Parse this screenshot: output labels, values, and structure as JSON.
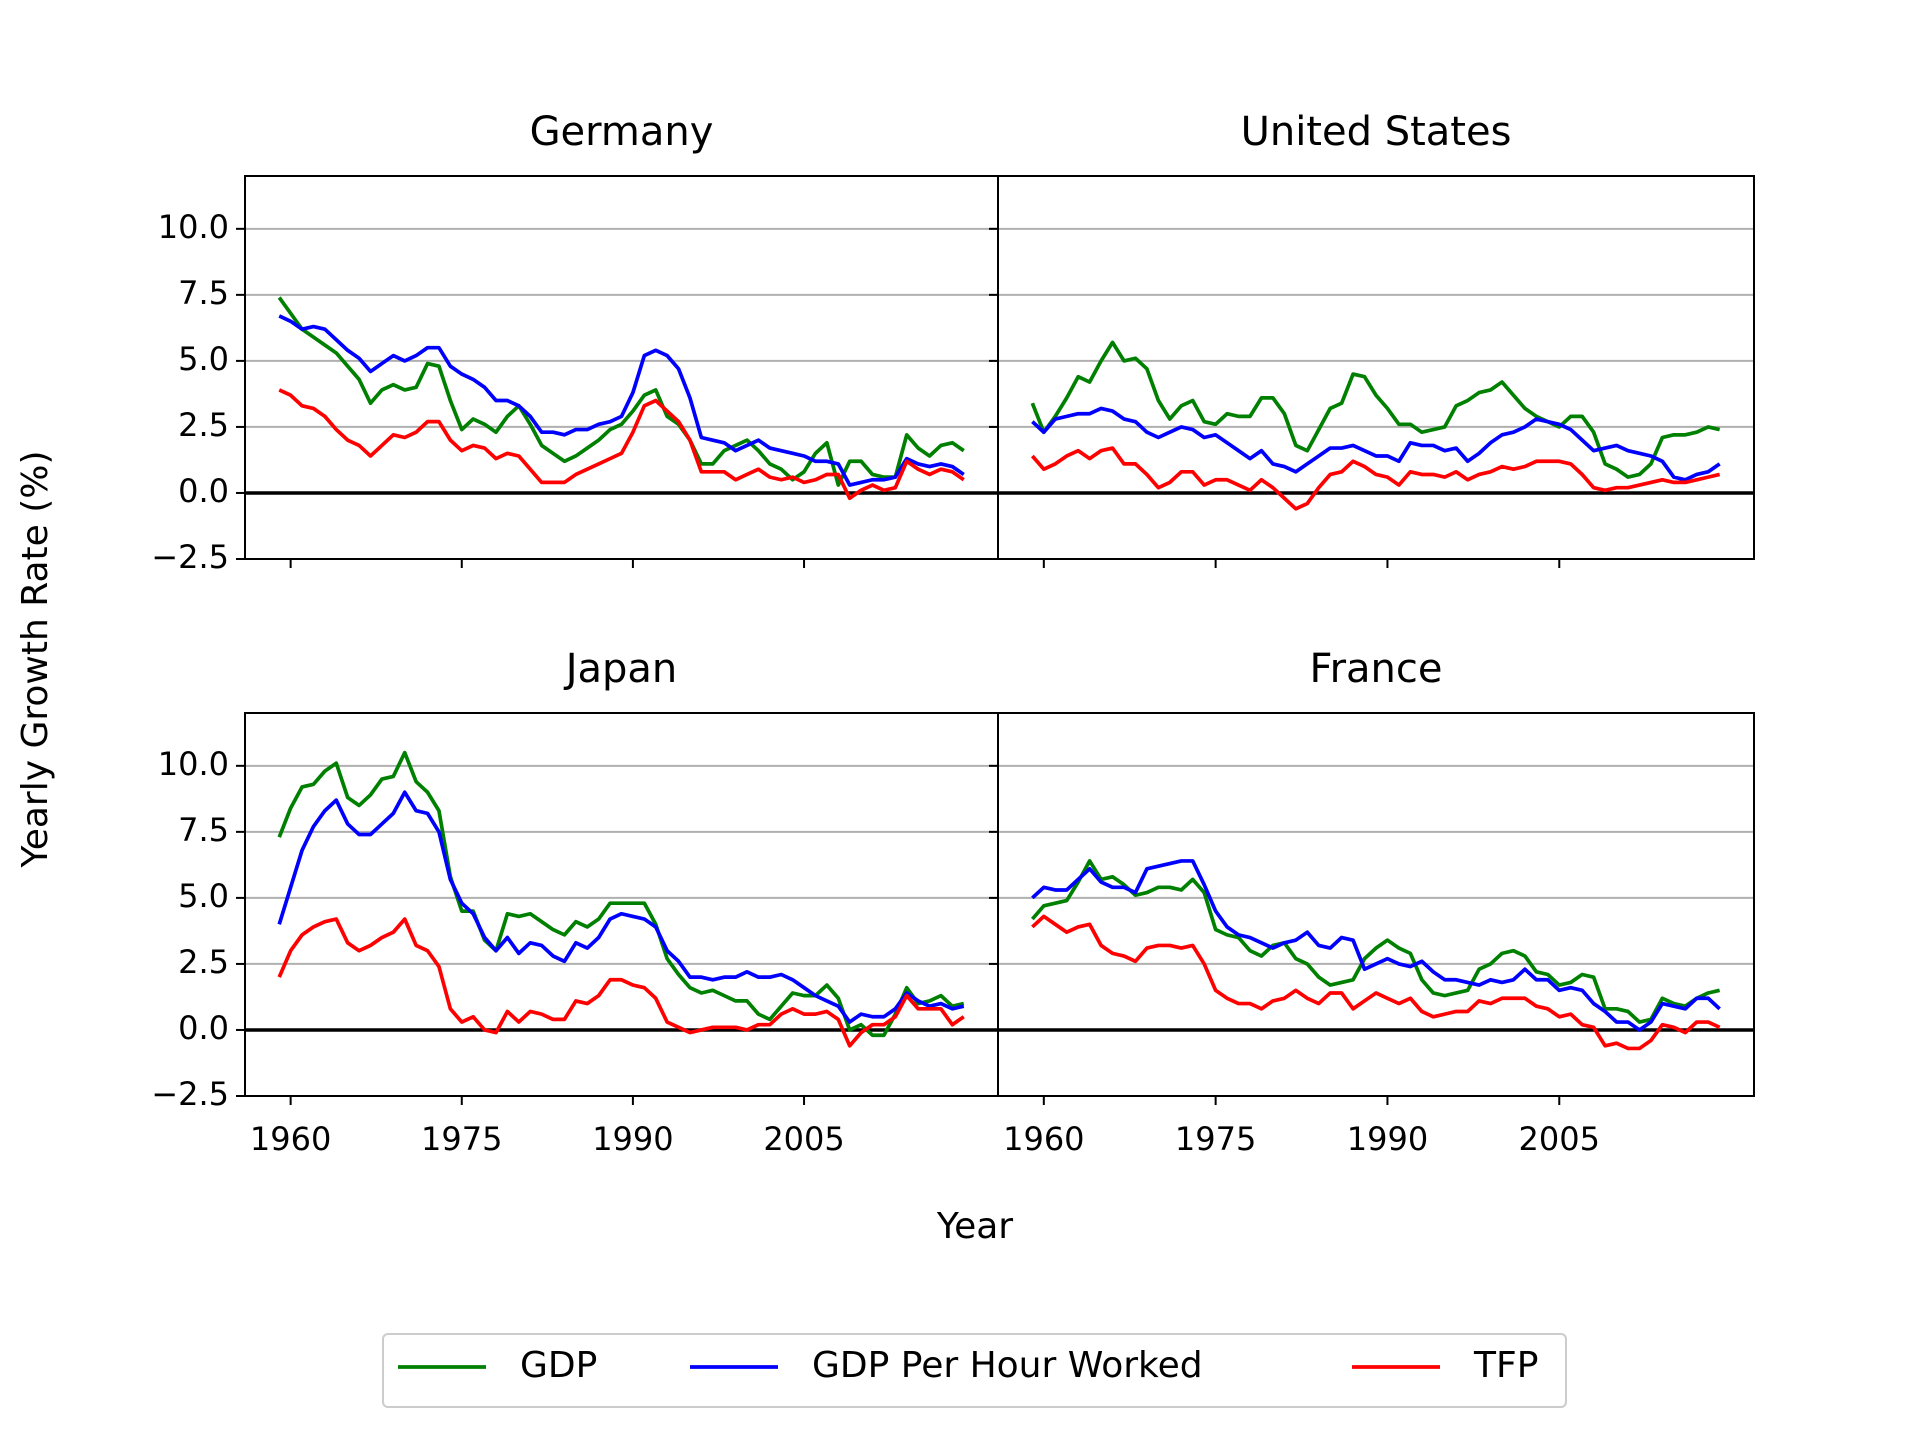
{
  "chart_data": {
    "type": "line",
    "xlabel": "Year",
    "ylabel": "Yearly Growth Rate (%)",
    "x": [
      1959,
      1960,
      1961,
      1962,
      1963,
      1964,
      1965,
      1966,
      1967,
      1968,
      1969,
      1970,
      1971,
      1972,
      1973,
      1974,
      1975,
      1976,
      1977,
      1978,
      1979,
      1980,
      1981,
      1982,
      1983,
      1984,
      1985,
      1986,
      1987,
      1988,
      1989,
      1990,
      1991,
      1992,
      1993,
      1994,
      1995,
      1996,
      1997,
      1998,
      1999,
      2000,
      2001,
      2002,
      2003,
      2004,
      2005,
      2006,
      2007,
      2008,
      2009,
      2010,
      2011,
      2012,
      2013,
      2014,
      2015,
      2016,
      2017,
      2018,
      2019
    ],
    "xlim": [
      1956,
      2022
    ],
    "xticks": [
      1960,
      1975,
      1990,
      2005
    ],
    "ylim": [
      -2.5,
      12
    ],
    "yticks": [
      {
        "value": -2.5,
        "label": "−2.5"
      },
      {
        "value": 0,
        "label": "0.0"
      },
      {
        "value": 2.5,
        "label": "2.5"
      },
      {
        "value": 5,
        "label": "5.0"
      },
      {
        "value": 7.5,
        "label": "7.5"
      },
      {
        "value": 10,
        "label": "10.0"
      }
    ],
    "grid": "y",
    "hline": 0,
    "hline_color": "#000000",
    "legend": "lower center",
    "series": [
      {
        "name": "GDP",
        "color": "#008000"
      },
      {
        "name": "GDP Per Hour Worked",
        "color": "#0000ff"
      },
      {
        "name": "TFP",
        "color": "#ff0000"
      }
    ],
    "panels": [
      {
        "title": "Germany",
        "values": [
          [
            7.4,
            6.8,
            6.2,
            5.9,
            5.6,
            5.3,
            4.8,
            4.3,
            3.4,
            3.9,
            4.1,
            3.9,
            4.0,
            4.9,
            4.8,
            3.5,
            2.4,
            2.8,
            2.6,
            2.3,
            2.9,
            3.3,
            2.6,
            1.8,
            1.5,
            1.2,
            1.4,
            1.7,
            2.0,
            2.4,
            2.6,
            3.1,
            3.7,
            3.9,
            2.9,
            2.6,
            2.0,
            1.1,
            1.1,
            1.6,
            1.8,
            2.0,
            1.6,
            1.1,
            0.9,
            0.5,
            0.8,
            1.5,
            1.9,
            0.3,
            1.2,
            1.2,
            0.7,
            0.6,
            0.6,
            2.2,
            1.7,
            1.4,
            1.8,
            1.9,
            1.6
          ],
          [
            6.7,
            6.5,
            6.2,
            6.3,
            6.2,
            5.8,
            5.4,
            5.1,
            4.6,
            4.9,
            5.2,
            5.0,
            5.2,
            5.5,
            5.5,
            4.8,
            4.5,
            4.3,
            4.0,
            3.5,
            3.5,
            3.3,
            2.9,
            2.3,
            2.3,
            2.2,
            2.4,
            2.4,
            2.6,
            2.7,
            2.9,
            3.8,
            5.2,
            5.4,
            5.2,
            4.7,
            3.6,
            2.1,
            2.0,
            1.9,
            1.6,
            1.8,
            2.0,
            1.7,
            1.6,
            1.5,
            1.4,
            1.2,
            1.2,
            1.1,
            0.3,
            0.4,
            0.5,
            0.5,
            0.6,
            1.3,
            1.1,
            1.0,
            1.1,
            1.0,
            0.7
          ],
          [
            3.9,
            3.7,
            3.3,
            3.2,
            2.9,
            2.4,
            2.0,
            1.8,
            1.4,
            1.8,
            2.2,
            2.1,
            2.3,
            2.7,
            2.7,
            2.0,
            1.6,
            1.8,
            1.7,
            1.3,
            1.5,
            1.4,
            0.9,
            0.4,
            0.4,
            0.4,
            0.7,
            0.9,
            1.1,
            1.3,
            1.5,
            2.3,
            3.3,
            3.5,
            3.1,
            2.7,
            2.0,
            0.8,
            0.8,
            0.8,
            0.5,
            0.7,
            0.9,
            0.6,
            0.5,
            0.6,
            0.4,
            0.5,
            0.7,
            0.7,
            -0.2,
            0.1,
            0.3,
            0.1,
            0.2,
            1.2,
            0.9,
            0.7,
            0.9,
            0.8,
            0.5
          ]
        ]
      },
      {
        "title": "United States",
        "values": [
          [
            3.4,
            2.3,
            2.9,
            3.6,
            4.4,
            4.2,
            5.0,
            5.7,
            5.0,
            5.1,
            4.7,
            3.5,
            2.8,
            3.3,
            3.5,
            2.7,
            2.6,
            3.0,
            2.9,
            2.9,
            3.6,
            3.6,
            3.0,
            1.8,
            1.6,
            2.4,
            3.2,
            3.4,
            4.5,
            4.4,
            3.7,
            3.2,
            2.6,
            2.6,
            2.3,
            2.4,
            2.5,
            3.3,
            3.5,
            3.8,
            3.9,
            4.2,
            3.7,
            3.2,
            2.9,
            2.7,
            2.5,
            2.9,
            2.9,
            2.3,
            1.1,
            0.9,
            0.6,
            0.7,
            1.1,
            2.1,
            2.2,
            2.2,
            2.3,
            2.5,
            2.4
          ],
          [
            2.7,
            2.3,
            2.8,
            2.9,
            3.0,
            3.0,
            3.2,
            3.1,
            2.8,
            2.7,
            2.3,
            2.1,
            2.3,
            2.5,
            2.4,
            2.1,
            2.2,
            1.9,
            1.6,
            1.3,
            1.6,
            1.1,
            1.0,
            0.8,
            1.1,
            1.4,
            1.7,
            1.7,
            1.8,
            1.6,
            1.4,
            1.4,
            1.2,
            1.9,
            1.8,
            1.8,
            1.6,
            1.7,
            1.2,
            1.5,
            1.9,
            2.2,
            2.3,
            2.5,
            2.8,
            2.7,
            2.6,
            2.4,
            2.0,
            1.6,
            1.7,
            1.8,
            1.6,
            1.5,
            1.4,
            1.2,
            0.6,
            0.5,
            0.7,
            0.8,
            1.1
          ],
          [
            1.4,
            0.9,
            1.1,
            1.4,
            1.6,
            1.3,
            1.6,
            1.7,
            1.1,
            1.1,
            0.7,
            0.2,
            0.4,
            0.8,
            0.8,
            0.3,
            0.5,
            0.5,
            0.3,
            0.1,
            0.5,
            0.2,
            -0.2,
            -0.6,
            -0.4,
            0.2,
            0.7,
            0.8,
            1.2,
            1.0,
            0.7,
            0.6,
            0.3,
            0.8,
            0.7,
            0.7,
            0.6,
            0.8,
            0.5,
            0.7,
            0.8,
            1.0,
            0.9,
            1.0,
            1.2,
            1.2,
            1.2,
            1.1,
            0.7,
            0.2,
            0.1,
            0.2,
            0.2,
            0.3,
            0.4,
            0.5,
            0.4,
            0.4,
            0.5,
            0.6,
            0.7
          ]
        ]
      },
      {
        "title": "Japan",
        "values": [
          [
            7.3,
            8.4,
            9.2,
            9.3,
            9.8,
            10.1,
            8.8,
            8.5,
            8.9,
            9.5,
            9.6,
            10.5,
            9.4,
            9.0,
            8.3,
            5.8,
            4.5,
            4.5,
            3.4,
            3.0,
            4.4,
            4.3,
            4.4,
            4.1,
            3.8,
            3.6,
            4.1,
            3.9,
            4.2,
            4.8,
            4.8,
            4.8,
            4.8,
            4.0,
            2.7,
            2.1,
            1.6,
            1.4,
            1.5,
            1.3,
            1.1,
            1.1,
            0.6,
            0.4,
            0.9,
            1.4,
            1.3,
            1.3,
            1.7,
            1.2,
            0.0,
            0.2,
            -0.2,
            -0.2,
            0.6,
            1.6,
            1.0,
            1.1,
            1.3,
            0.9,
            1.0
          ],
          [
            4.0,
            5.4,
            6.8,
            7.7,
            8.3,
            8.7,
            7.8,
            7.4,
            7.4,
            7.8,
            8.2,
            9.0,
            8.3,
            8.2,
            7.5,
            5.7,
            4.8,
            4.4,
            3.5,
            3.0,
            3.5,
            2.9,
            3.3,
            3.2,
            2.8,
            2.6,
            3.3,
            3.1,
            3.5,
            4.2,
            4.4,
            4.3,
            4.2,
            3.9,
            3.0,
            2.6,
            2.0,
            2.0,
            1.9,
            2.0,
            2.0,
            2.2,
            2.0,
            2.0,
            2.1,
            1.9,
            1.6,
            1.3,
            1.1,
            0.9,
            0.3,
            0.6,
            0.5,
            0.5,
            0.8,
            1.4,
            1.1,
            0.9,
            1.0,
            0.8,
            0.9
          ],
          [
            2.0,
            3.0,
            3.6,
            3.9,
            4.1,
            4.2,
            3.3,
            3.0,
            3.2,
            3.5,
            3.7,
            4.2,
            3.2,
            3.0,
            2.4,
            0.8,
            0.3,
            0.5,
            0.0,
            -0.1,
            0.7,
            0.3,
            0.7,
            0.6,
            0.4,
            0.4,
            1.1,
            1.0,
            1.3,
            1.9,
            1.9,
            1.7,
            1.6,
            1.2,
            0.3,
            0.1,
            -0.1,
            0.0,
            0.1,
            0.1,
            0.1,
            0.0,
            0.2,
            0.2,
            0.6,
            0.8,
            0.6,
            0.6,
            0.7,
            0.4,
            -0.6,
            -0.1,
            0.2,
            0.2,
            0.5,
            1.3,
            0.8,
            0.8,
            0.8,
            0.2,
            0.5
          ]
        ]
      },
      {
        "title": "France",
        "values": [
          [
            4.2,
            4.7,
            4.8,
            4.9,
            5.6,
            6.4,
            5.7,
            5.8,
            5.5,
            5.1,
            5.2,
            5.4,
            5.4,
            5.3,
            5.7,
            5.2,
            3.8,
            3.6,
            3.5,
            3.0,
            2.8,
            3.2,
            3.3,
            2.7,
            2.5,
            2.0,
            1.7,
            1.8,
            1.9,
            2.7,
            3.1,
            3.4,
            3.1,
            2.9,
            1.9,
            1.4,
            1.3,
            1.4,
            1.5,
            2.3,
            2.5,
            2.9,
            3.0,
            2.8,
            2.2,
            2.1,
            1.7,
            1.8,
            2.1,
            2.0,
            0.8,
            0.8,
            0.7,
            0.3,
            0.4,
            1.2,
            1.0,
            0.9,
            1.2,
            1.4,
            1.5
          ],
          [
            5.0,
            5.4,
            5.3,
            5.3,
            5.7,
            6.1,
            5.6,
            5.4,
            5.4,
            5.2,
            6.1,
            6.2,
            6.3,
            6.4,
            6.4,
            5.5,
            4.5,
            3.9,
            3.6,
            3.5,
            3.3,
            3.1,
            3.3,
            3.4,
            3.7,
            3.2,
            3.1,
            3.5,
            3.4,
            2.3,
            2.5,
            2.7,
            2.5,
            2.4,
            2.6,
            2.2,
            1.9,
            1.9,
            1.8,
            1.7,
            1.9,
            1.8,
            1.9,
            2.3,
            1.9,
            1.9,
            1.5,
            1.6,
            1.5,
            1.0,
            0.7,
            0.3,
            0.3,
            0.0,
            0.3,
            1.0,
            0.9,
            0.8,
            1.2,
            1.2,
            0.8
          ],
          [
            3.9,
            4.3,
            4.0,
            3.7,
            3.9,
            4.0,
            3.2,
            2.9,
            2.8,
            2.6,
            3.1,
            3.2,
            3.2,
            3.1,
            3.2,
            2.5,
            1.5,
            1.2,
            1.0,
            1.0,
            0.8,
            1.1,
            1.2,
            1.5,
            1.2,
            1.0,
            1.4,
            1.4,
            0.8,
            1.1,
            1.4,
            1.2,
            1.0,
            1.2,
            0.7,
            0.5,
            0.6,
            0.7,
            0.7,
            1.1,
            1.0,
            1.2,
            1.2,
            1.2,
            0.9,
            0.8,
            0.5,
            0.6,
            0.2,
            0.1,
            -0.6,
            -0.5,
            -0.7,
            -0.7,
            -0.4,
            0.2,
            0.1,
            -0.1,
            0.3,
            0.3,
            0.1
          ]
        ]
      }
    ]
  }
}
